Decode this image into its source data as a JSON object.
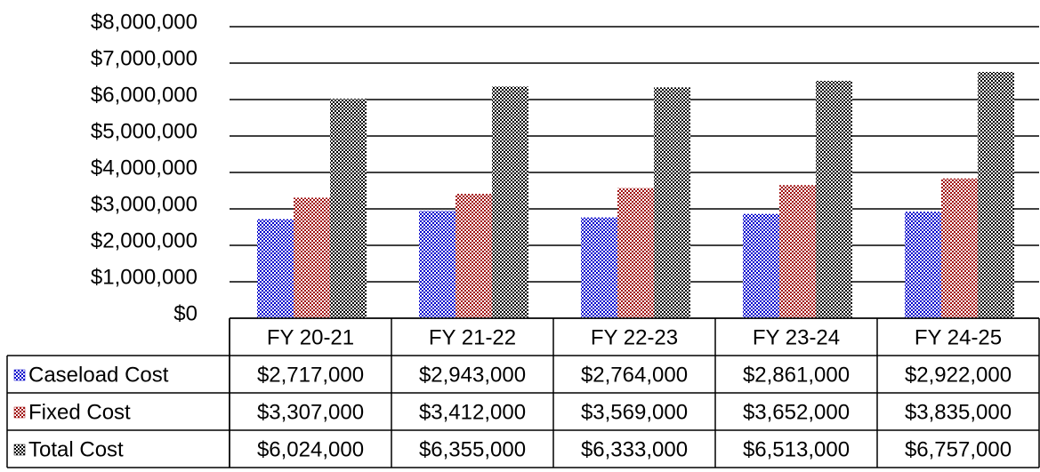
{
  "chart_data": {
    "type": "bar",
    "categories": [
      "FY 20-21",
      "FY 21-22",
      "FY 22-23",
      "FY 23-24",
      "FY 24-25"
    ],
    "series": [
      {
        "name": "Caseload Cost",
        "color": "#0000cc",
        "values": [
          2717000,
          2943000,
          2764000,
          2861000,
          2922000
        ],
        "value_labels": [
          "$2,717,000",
          "$2,943,000",
          "$2,764,000",
          "$2,861,000",
          "$2,922,000"
        ]
      },
      {
        "name": "Fixed Cost",
        "color": "#a01010",
        "values": [
          3307000,
          3412000,
          3569000,
          3652000,
          3835000
        ],
        "value_labels": [
          "$3,307,000",
          "$3,412,000",
          "$3,569,000",
          "$3,652,000",
          "$3,835,000"
        ]
      },
      {
        "name": "Total Cost",
        "color": "#000000",
        "values": [
          6024000,
          6355000,
          6333000,
          6513000,
          6757000
        ],
        "value_labels": [
          "$6,024,000",
          "$6,355,000",
          "$6,333,000",
          "$6,513,000",
          "$6,757,000"
        ]
      }
    ],
    "ylim": [
      0,
      8000000
    ],
    "yticks": [
      {
        "value": 0,
        "label": "$0"
      },
      {
        "value": 1000000,
        "label": "$1,000,000"
      },
      {
        "value": 2000000,
        "label": "$2,000,000"
      },
      {
        "value": 3000000,
        "label": "$3,000,000"
      },
      {
        "value": 4000000,
        "label": "$4,000,000"
      },
      {
        "value": 5000000,
        "label": "$5,000,000"
      },
      {
        "value": 6000000,
        "label": "$6,000,000"
      },
      {
        "value": 7000000,
        "label": "$7,000,000"
      },
      {
        "value": 8000000,
        "label": "$8,000,000"
      }
    ],
    "grid": true
  }
}
